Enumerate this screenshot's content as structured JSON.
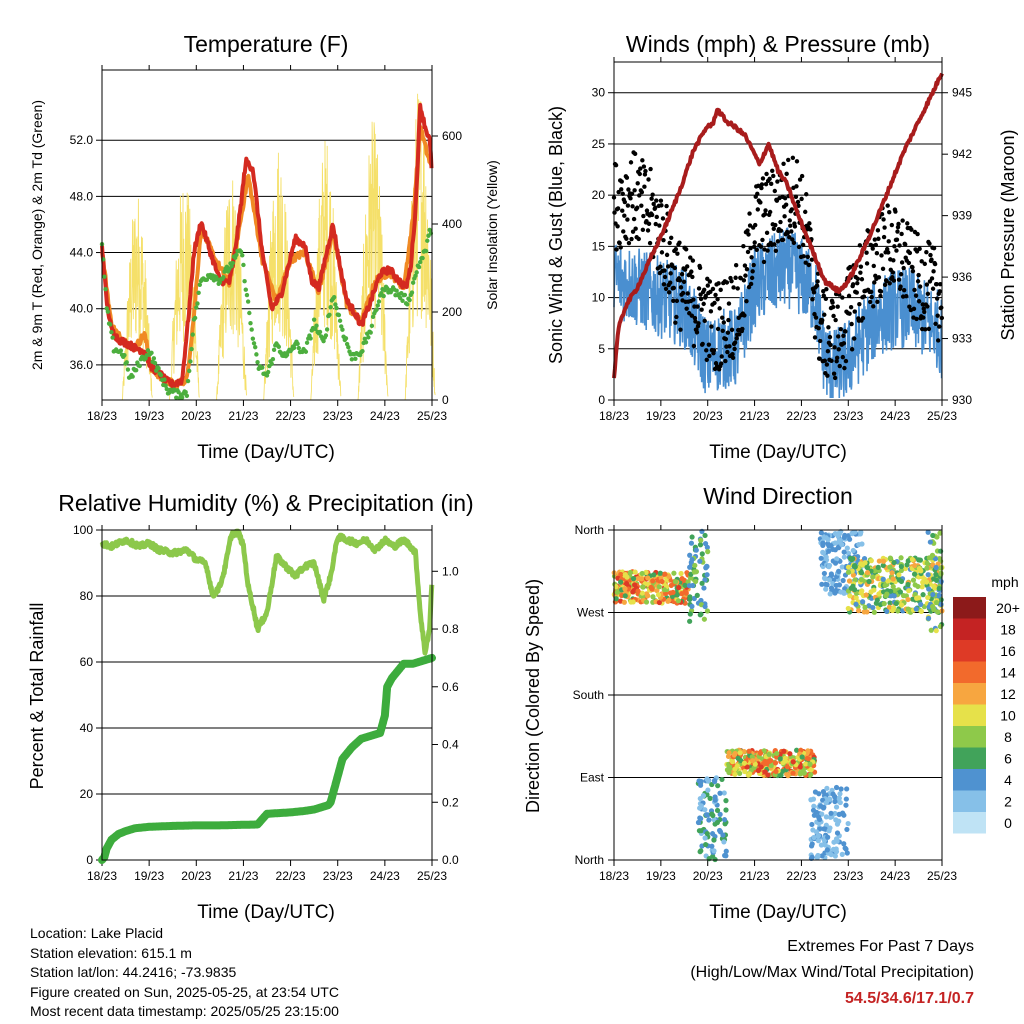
{
  "panels": {
    "temperature": {
      "title": "Temperature (F)",
      "xlabel": "Time (Day/UTC)",
      "ylabel_left": "2m & 9m T (Red, Orange) & 2m Td (Green)",
      "ylabel_right": "Solar Insolation (Yellow)"
    },
    "winds": {
      "title": "Winds (mph) & Pressure (mb)",
      "xlabel": "Time (Day/UTC)",
      "ylabel_left": "Sonic Wind & Gust (Blue, Black)",
      "ylabel_right": "Station Pressure (Maroon)"
    },
    "humidity": {
      "title": "Relative Humidity (%) & Precipitation (in)",
      "xlabel": "Time (Day/UTC)",
      "ylabel_left": "Percent & Total Rainfall"
    },
    "direction": {
      "title": "Wind Direction",
      "xlabel": "Time (Day/UTC)",
      "ylabel_left": "Direction (Colored By Speed)",
      "legend_title": "mph"
    }
  },
  "footer": {
    "location": "Location: Lake Placid",
    "elevation": "Station elevation: 615.1 m",
    "latlon": "Station lat/lon: 44.2416; -73.9835",
    "created": "Figure created on Sun, 2025-05-25, at 23:54 UTC",
    "recent": "Most recent data timestamp: 2025/05/25 23:15:00"
  },
  "extremes": {
    "line1": "Extremes For Past 7 Days",
    "line2": "(High/Low/Max Wind/Total Precipitation)",
    "values": "54.5/34.6/17.1/0.7"
  },
  "chart_data": [
    {
      "type": "line",
      "name": "temperature",
      "x_ticks": [
        "18/23",
        "19/23",
        "20/23",
        "21/23",
        "22/23",
        "23/23",
        "24/23",
        "25/23"
      ],
      "x_range_days": [
        0,
        7
      ],
      "ylim": [
        33.5,
        57
      ],
      "y_ticks": [
        "36.0",
        "40.0",
        "44.0",
        "48.0",
        "52.0"
      ],
      "y_tick_values": [
        36,
        40,
        44,
        48,
        52
      ],
      "y2lim": [
        0,
        750
      ],
      "y2_ticks": [
        "0",
        "200",
        "400",
        "600"
      ],
      "y2_tick_values": [
        0,
        200,
        400,
        600
      ],
      "series": [
        {
          "role": "2m T",
          "color": "#d42a20",
          "axis": "left",
          "x": [
            0,
            0.1,
            0.2,
            0.35,
            0.55,
            0.7,
            0.9,
            1.05,
            1.2,
            1.35,
            1.5,
            1.7,
            1.85,
            1.95,
            2.1,
            2.3,
            2.5,
            2.7,
            2.8,
            2.95,
            3.05,
            3.2,
            3.4,
            3.6,
            3.8,
            3.95,
            4.1,
            4.3,
            4.45,
            4.6,
            4.75,
            4.9,
            5.05,
            5.2,
            5.35,
            5.5,
            5.7,
            5.9,
            6.1,
            6.3,
            6.45,
            6.55,
            6.65,
            6.75,
            6.85,
            6.95,
            7.0
          ],
          "y": [
            44.5,
            40.5,
            38.5,
            37.8,
            37.5,
            37.2,
            37.0,
            35.8,
            35.5,
            34.9,
            34.6,
            34.9,
            40,
            44,
            46.2,
            44,
            42,
            41.9,
            43.5,
            47.5,
            50.5,
            50,
            44,
            40,
            41,
            43,
            45,
            44.5,
            42,
            41.5,
            43.8,
            46,
            43,
            40.5,
            39.8,
            38.8,
            40.5,
            42.5,
            42.8,
            42,
            41.5,
            43,
            47,
            54.5,
            53,
            52,
            49.7
          ]
        },
        {
          "role": "9m T",
          "color": "#f08a24",
          "axis": "left",
          "x": [
            0,
            0.2,
            0.4,
            0.7,
            0.9,
            1.05,
            1.2,
            1.4,
            1.6,
            1.8,
            1.95,
            2.1,
            2.4,
            2.7,
            2.95,
            3.1,
            3.4,
            3.7,
            4.0,
            4.3,
            4.6,
            4.9,
            5.2,
            5.5,
            5.8,
            6.1,
            6.4,
            6.6,
            6.75,
            6.9,
            7.0
          ],
          "y": [
            44.2,
            38.8,
            37.9,
            37.2,
            38.2,
            35.8,
            35.2,
            34.8,
            34.6,
            35,
            39.5,
            45.8,
            43.5,
            41.8,
            46.5,
            49.5,
            43.5,
            40.5,
            43.5,
            44,
            41.2,
            45.5,
            40.2,
            39,
            42,
            42.6,
            41.5,
            46.5,
            53,
            51,
            50
          ]
        },
        {
          "role": "2m Td",
          "color": "#4cae3e",
          "axis": "left",
          "x": [
            0,
            0.1,
            0.25,
            0.45,
            0.6,
            0.8,
            1.0,
            1.2,
            1.4,
            1.6,
            1.8,
            1.95,
            2.1,
            2.3,
            2.5,
            2.75,
            2.95,
            3.15,
            3.3,
            3.5,
            3.7,
            3.9,
            4.1,
            4.3,
            4.5,
            4.7,
            4.9,
            5.1,
            5.3,
            5.5,
            5.7,
            5.9,
            6.1,
            6.3,
            6.5,
            6.7,
            6.85,
            7.0
          ],
          "y": [
            44.5,
            40,
            37.2,
            36.8,
            35,
            36.2,
            37,
            35.5,
            34.2,
            33.9,
            34,
            39,
            42,
            42.5,
            42,
            43.2,
            44.2,
            39,
            36,
            35.2,
            37.5,
            36.5,
            37.5,
            36.8,
            39,
            37.5,
            41,
            38.5,
            36.5,
            37,
            38.5,
            41,
            41.5,
            41,
            40.5,
            43,
            44,
            46
          ]
        },
        {
          "role": "Solar Insolation",
          "color": "#f5e06a",
          "axis": "right",
          "daily_peak_x": [
            0.75,
            1.75,
            2.75,
            3.75,
            4.75,
            5.75,
            6.75
          ],
          "daily_peak": [
            480,
            520,
            540,
            600,
            610,
            640,
            740
          ]
        }
      ]
    },
    {
      "type": "scatter",
      "name": "winds",
      "x_ticks": [
        "18/23",
        "19/23",
        "20/23",
        "21/23",
        "22/23",
        "23/23",
        "24/23",
        "25/23"
      ],
      "x_range_days": [
        0,
        7
      ],
      "ylim": [
        0,
        33
      ],
      "y_ticks": [
        "0",
        "5",
        "10",
        "15",
        "20",
        "25",
        "30"
      ],
      "y_tick_values": [
        0,
        5,
        10,
        15,
        20,
        25,
        30
      ],
      "y2lim": [
        930,
        946.5
      ],
      "y2_ticks": [
        "930",
        "933",
        "936",
        "939",
        "942",
        "945"
      ],
      "y2_tick_values": [
        930,
        933,
        936,
        939,
        942,
        945
      ],
      "series": [
        {
          "role": "Sonic Wind",
          "color": "#4a8fd0",
          "axis": "left",
          "x": [
            0,
            0.5,
            1.0,
            1.5,
            1.8,
            2.0,
            2.3,
            2.6,
            3.0,
            3.3,
            3.7,
            4.0,
            4.3,
            4.5,
            4.7,
            5.0,
            5.3,
            5.6,
            6.0,
            6.3,
            6.6,
            6.9,
            7.0
          ],
          "y": [
            12,
            11,
            10,
            9,
            6,
            4,
            5,
            5,
            11,
            12,
            13,
            12,
            10,
            4,
            3,
            4,
            6,
            8,
            9,
            9,
            8,
            7,
            6
          ]
        },
        {
          "role": "Gust",
          "color": "#000000",
          "axis": "left",
          "x": [
            0,
            0.4,
            0.8,
            1.1,
            1.3,
            1.6,
            1.9,
            2.1,
            2.4,
            2.7,
            3.0,
            3.3,
            3.6,
            3.9,
            4.1,
            4.4,
            4.6,
            4.9,
            5.2,
            5.5,
            5.8,
            6.1,
            6.4,
            6.7,
            7.0
          ],
          "y": [
            19,
            20,
            18,
            15,
            12,
            10,
            9,
            7,
            8,
            9,
            17,
            18,
            19,
            20,
            16,
            7,
            6,
            7,
            11,
            13,
            15,
            14,
            12,
            11,
            10
          ]
        },
        {
          "role": "Station Pressure",
          "color": "#a81c1c",
          "axis": "right",
          "x": [
            0,
            0.05,
            0.1,
            0.25,
            0.5,
            0.8,
            1.1,
            1.4,
            1.7,
            2.0,
            2.1,
            2.2,
            2.4,
            2.6,
            2.8,
            3.0,
            3.1,
            3.3,
            3.5,
            3.7,
            3.9,
            4.2,
            4.5,
            4.8,
            5.0,
            5.3,
            5.6,
            5.9,
            6.2,
            6.5,
            6.8,
            7.0
          ],
          "y": [
            931,
            932.5,
            933.5,
            934.6,
            935.5,
            937,
            938.5,
            940.2,
            942.2,
            943.4,
            943.4,
            944.2,
            943.6,
            943.3,
            942.9,
            942,
            941.5,
            942.5,
            941.2,
            940.5,
            939.2,
            937.5,
            935.8,
            935.3,
            935.8,
            937.2,
            938.8,
            940.5,
            942.2,
            943.6,
            945,
            946
          ]
        }
      ]
    },
    {
      "type": "line",
      "name": "humidity",
      "x_ticks": [
        "18/23",
        "19/23",
        "20/23",
        "21/23",
        "22/23",
        "23/23",
        "24/23",
        "25/23"
      ],
      "x_range_days": [
        0,
        7
      ],
      "ylim": [
        0,
        100
      ],
      "y_ticks": [
        "0",
        "20",
        "40",
        "60",
        "80",
        "100"
      ],
      "y_tick_values": [
        0,
        20,
        40,
        60,
        80,
        100
      ],
      "y2lim": [
        0,
        1.143
      ],
      "y2_ticks": [
        "0.0",
        "0.2",
        "0.4",
        "0.6",
        "0.8",
        "1.0"
      ],
      "y2_tick_values": [
        0,
        0.2,
        0.4,
        0.6,
        0.8,
        1.0
      ],
      "series": [
        {
          "role": "Relative Humidity",
          "color": "#8cc84b",
          "axis": "left",
          "x": [
            0,
            0.2,
            0.5,
            0.8,
            1.0,
            1.2,
            1.5,
            1.8,
            2.0,
            2.2,
            2.35,
            2.5,
            2.6,
            2.75,
            2.9,
            3.0,
            3.1,
            3.2,
            3.3,
            3.5,
            3.7,
            3.9,
            4.1,
            4.3,
            4.5,
            4.7,
            4.85,
            5.0,
            5.2,
            5.4,
            5.6,
            5.8,
            6.0,
            6.2,
            6.4,
            6.55,
            6.65,
            6.75,
            6.85,
            6.95,
            7.0
          ],
          "y": [
            96,
            95,
            97,
            95,
            96,
            94,
            93,
            94,
            91,
            90,
            80,
            83,
            88,
            99,
            99,
            95,
            83,
            77,
            70,
            75,
            92,
            89,
            86,
            89,
            90,
            79,
            86,
            98,
            97,
            96,
            97,
            94,
            97,
            95,
            97,
            95,
            93,
            75,
            63,
            70,
            85
          ]
        },
        {
          "role": "Total Precipitation",
          "color": "#3dac3d",
          "axis": "right",
          "x": [
            0,
            0.05,
            0.1,
            0.2,
            0.35,
            0.5,
            0.7,
            1.0,
            1.5,
            2.0,
            2.5,
            3.0,
            3.3,
            3.5,
            3.7,
            4.0,
            4.3,
            4.5,
            4.8,
            4.85,
            5.0,
            5.1,
            5.3,
            5.5,
            5.7,
            5.9,
            6.0,
            6.05,
            6.15,
            6.3,
            6.4,
            6.6,
            6.8,
            7.0
          ],
          "y": [
            0,
            0.01,
            0.04,
            0.07,
            0.09,
            0.1,
            0.11,
            0.115,
            0.118,
            0.12,
            0.12,
            0.122,
            0.123,
            0.16,
            0.162,
            0.165,
            0.17,
            0.175,
            0.19,
            0.2,
            0.29,
            0.35,
            0.39,
            0.42,
            0.43,
            0.44,
            0.5,
            0.6,
            0.63,
            0.66,
            0.68,
            0.68,
            0.69,
            0.7
          ]
        }
      ]
    },
    {
      "type": "scatter",
      "name": "direction",
      "x_ticks": [
        "18/23",
        "19/23",
        "20/23",
        "21/23",
        "22/23",
        "23/23",
        "24/23",
        "25/23"
      ],
      "x_range_days": [
        0,
        7
      ],
      "ylim": [
        0,
        360
      ],
      "y_ticks": [
        "North",
        "East",
        "South",
        "West",
        "North"
      ],
      "y_tick_values": [
        0,
        90,
        180,
        270,
        360
      ],
      "speed_legend": {
        "labels": [
          "0",
          "2",
          "4",
          "6",
          "8",
          "10",
          "12",
          "14",
          "16",
          "18",
          "20+"
        ],
        "colors": [
          "#bfe3f5",
          "#86c0e8",
          "#4f92d0",
          "#41a35a",
          "#8ec94a",
          "#e6e14a",
          "#f7a640",
          "#f26a2c",
          "#de3a26",
          "#c42323",
          "#8c1a1a"
        ]
      },
      "clusters": [
        {
          "x_range": [
            0.0,
            1.6
          ],
          "dir_range": [
            280,
            315
          ],
          "speed_range": [
            6,
            16
          ]
        },
        {
          "x_range": [
            1.6,
            2.0
          ],
          "dir_range": [
            260,
            360
          ],
          "speed_range": [
            3,
            8
          ]
        },
        {
          "x_range": [
            1.8,
            2.4
          ],
          "dir_range": [
            0,
            90
          ],
          "speed_range": [
            2,
            7
          ]
        },
        {
          "x_range": [
            2.4,
            4.3
          ],
          "dir_range": [
            92,
            120
          ],
          "speed_range": [
            6,
            16
          ]
        },
        {
          "x_range": [
            4.2,
            5.0
          ],
          "dir_range": [
            0,
            80
          ],
          "speed_range": [
            1,
            5
          ]
        },
        {
          "x_range": [
            4.4,
            5.3
          ],
          "dir_range": [
            290,
            360
          ],
          "speed_range": [
            1,
            5
          ]
        },
        {
          "x_range": [
            5.0,
            7.0
          ],
          "dir_range": [
            270,
            330
          ],
          "speed_range": [
            4,
            12
          ]
        },
        {
          "x_range": [
            6.7,
            7.0
          ],
          "dir_range": [
            250,
            360
          ],
          "speed_range": [
            3,
            10
          ]
        }
      ]
    }
  ]
}
